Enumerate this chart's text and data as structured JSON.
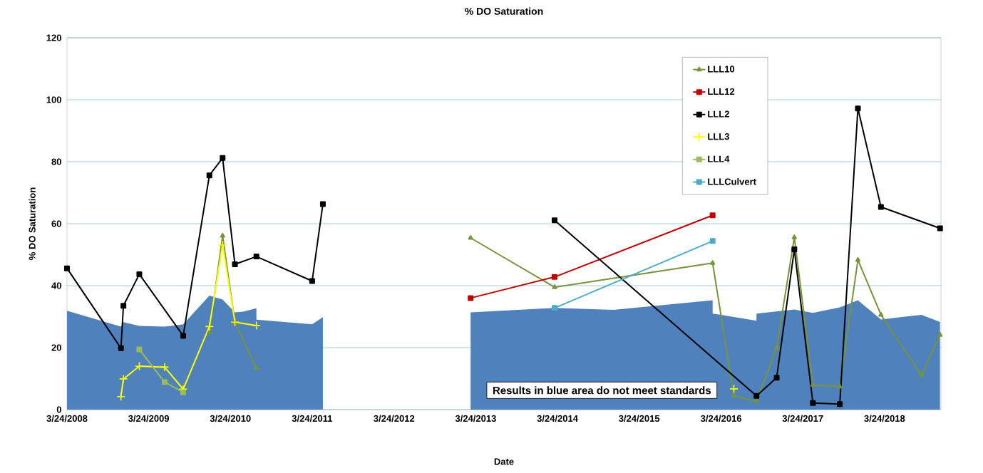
{
  "chart_data": {
    "type": "line",
    "title": "% DO Saturation",
    "xlabel": "Date",
    "ylabel": "% DO Saturation",
    "xlim": [
      "2008-03-24",
      "2018-12-01"
    ],
    "xticks": [
      {
        "value": "2008-03-24",
        "label": "3/24/2008"
      },
      {
        "value": "2009-03-24",
        "label": "3/24/2009"
      },
      {
        "value": "2010-03-24",
        "label": "3/24/2010"
      },
      {
        "value": "2011-03-24",
        "label": "3/24/2011"
      },
      {
        "value": "2012-03-24",
        "label": "3/24/2012"
      },
      {
        "value": "2013-03-24",
        "label": "3/24/2013"
      },
      {
        "value": "2014-03-24",
        "label": "3/24/2014"
      },
      {
        "value": "2015-03-24",
        "label": "3/24/2015"
      },
      {
        "value": "2016-03-24",
        "label": "3/24/2016"
      },
      {
        "value": "2017-03-24",
        "label": "3/24/2017"
      },
      {
        "value": "2018-03-24",
        "label": "3/24/2018"
      }
    ],
    "ylim": [
      0,
      120
    ],
    "yticks": [
      0,
      20,
      40,
      60,
      80,
      100,
      120
    ],
    "grid": "y",
    "legend": "top right",
    "annotations": [
      "Results in blue area do not meet standards"
    ],
    "series": [
      {
        "type": "area",
        "color": "#4f81bd",
        "x": [
          "2008-03-24",
          "2008-11-20",
          "2008-12-01",
          "2009-02-10",
          "2009-06-03",
          "2009-08-25",
          "2009-12-20",
          "2010-02-17",
          "2010-04-13",
          "2010-05-20",
          "2010-07-18",
          "2010-07-18",
          "2011-03-24",
          "2011-05-11",
          "2012-03-24",
          "2013-03-01",
          "2014-03-11",
          "2014-11-29",
          "2016-02-15",
          "2016-02-15",
          "2016-08-29",
          "2016-08-29",
          "2017-02-14",
          "2017-05-08",
          "2017-09-05",
          "2017-11-25",
          "2018-03-08",
          "2018-09-05",
          "2018-11-27"
        ],
        "values": [
          31.9,
          26.8,
          28.2,
          27.0,
          26.8,
          27.5,
          36.8,
          35.5,
          31.4,
          31.6,
          32.7,
          29.0,
          27.5,
          29.8,
          null,
          31.4,
          32.8,
          32.2,
          35.3,
          31.0,
          28.7,
          31.0,
          32.3,
          31.2,
          33.0,
          35.3,
          29.1,
          30.6,
          28.3
        ]
      },
      {
        "name": "LLL10",
        "color": "#77933c",
        "marker": "triangle",
        "x": [
          "2009-12-20",
          "2010-02-17",
          "2010-04-13",
          "2010-07-18",
          "2012-03-24",
          "2013-03-01",
          "2014-03-11",
          "2016-02-15",
          "2016-05-20",
          "2016-08-29",
          "2016-11-27",
          "2017-02-14",
          "2017-05-08",
          "2017-09-05",
          "2017-11-25",
          "2018-03-08",
          "2018-09-05",
          "2018-11-27"
        ],
        "values": [
          24.9,
          56.1,
          28,
          13.4,
          null,
          55.4,
          39.5,
          47.3,
          4.4,
          2.7,
          19.9,
          55.6,
          8.0,
          7.4,
          48.3,
          30.6,
          11.1,
          24.1
        ]
      },
      {
        "name": "LLL12",
        "color": "#c00000",
        "marker": "square",
        "x": [
          "2013-03-01",
          "2014-03-11",
          "2016-02-15"
        ],
        "values": [
          36.0,
          42.8,
          62.7
        ]
      },
      {
        "name": "LLL2",
        "color": "#000000",
        "marker": "square",
        "x": [
          "2008-03-24",
          "2008-11-20",
          "2008-12-01",
          "2009-02-10",
          "2009-08-25",
          "2009-12-20",
          "2010-02-17",
          "2010-04-13",
          "2010-07-18",
          "2011-03-24",
          "2011-05-11",
          "2012-03-24",
          "2014-03-11",
          "2016-08-29",
          "2016-11-27",
          "2017-02-14",
          "2017-05-08",
          "2017-09-05",
          "2017-11-25",
          "2018-03-08",
          "2018-11-27"
        ],
        "values": [
          45.6,
          19.8,
          33.5,
          43.7,
          23.8,
          75.6,
          81.2,
          46.9,
          49.4,
          41.5,
          66.3,
          null,
          61.1,
          4.4,
          10.3,
          51.7,
          2.1,
          1.8,
          97.2,
          65.4,
          58.5
        ]
      },
      {
        "name": "LLL3",
        "color": "#ffff00",
        "marker": "cross",
        "x": [
          "2008-11-20",
          "2008-12-01",
          "2009-02-10",
          "2009-06-03",
          "2009-08-25",
          "2009-12-20",
          "2010-02-17",
          "2010-04-13",
          "2010-07-18",
          "2012-03-24",
          "2016-05-20"
        ],
        "values": [
          4.2,
          9.9,
          14.0,
          13.7,
          6.6,
          26.8,
          53.1,
          28.2,
          27.1,
          null,
          6.7
        ]
      },
      {
        "name": "LLL4",
        "color": "#9bbb59",
        "marker": "square",
        "x": [
          "2009-02-10",
          "2009-06-03",
          "2009-08-25"
        ],
        "values": [
          19.4,
          8.9,
          5.6
        ]
      },
      {
        "name": "LLLCulvert",
        "color": "#4bacc6",
        "marker": "square",
        "x": [
          "2014-03-11",
          "2016-02-15"
        ],
        "values": [
          32.8,
          54.4
        ]
      }
    ]
  }
}
